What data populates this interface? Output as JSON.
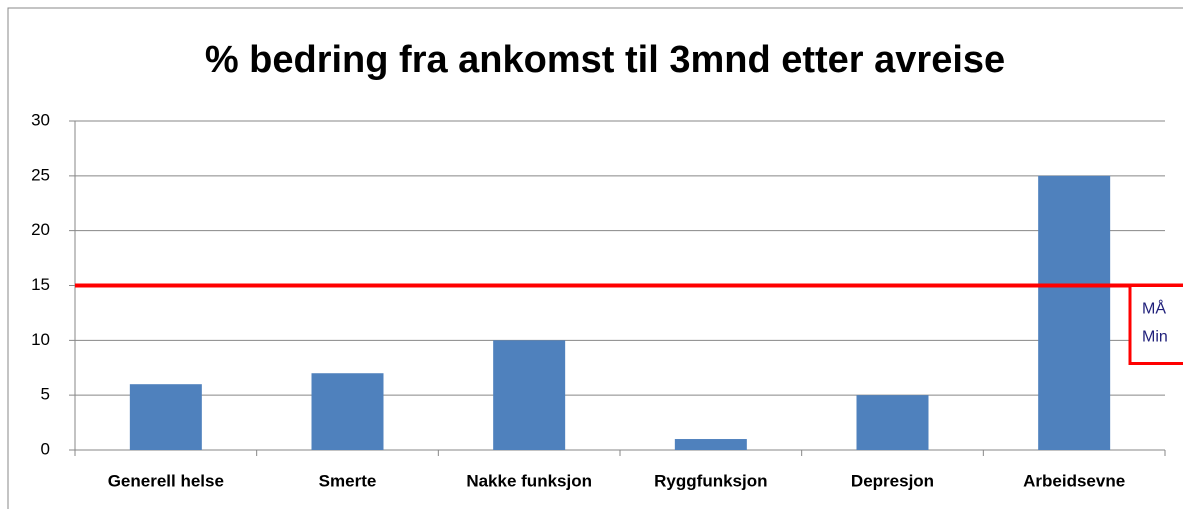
{
  "chart_data": {
    "type": "bar",
    "title": "% bedring fra ankomst til 3mnd etter avreise",
    "categories": [
      "Generell helse",
      "Smerte",
      "Nakke funksjon",
      "Ryggfunksjon",
      "Depresjon",
      "Arbeidsevne"
    ],
    "values": [
      6,
      7,
      10,
      1,
      5,
      25
    ],
    "color": "#4f81bd",
    "ylim": [
      0,
      30
    ],
    "yticks": [
      0,
      5,
      10,
      15,
      20,
      25,
      30
    ],
    "grid": true,
    "reference_line": {
      "value": 15,
      "color": "#ff0000"
    },
    "annotation": [
      "MÅ",
      "Min"
    ]
  }
}
